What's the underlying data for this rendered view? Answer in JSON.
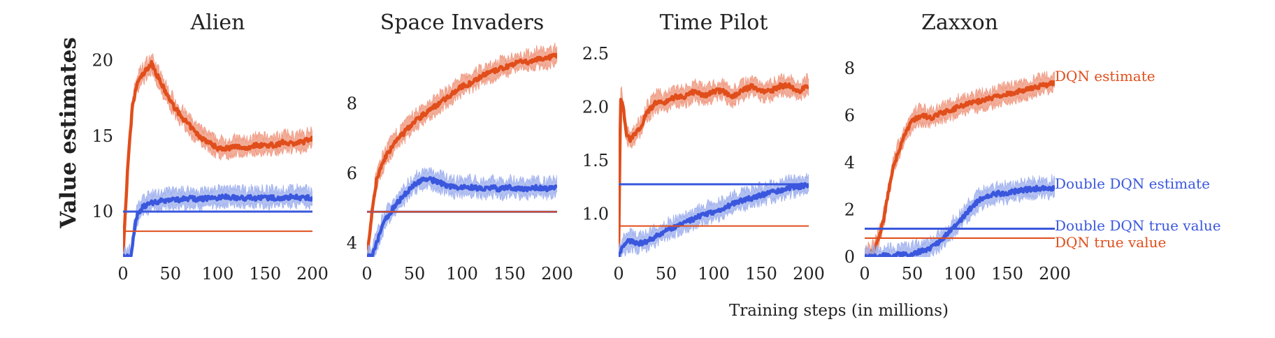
{
  "figure": {
    "ylabel": "Value estimates",
    "xlabel": "Training steps (in millions)",
    "legend_labels": {
      "dqn_estimate": "DQN estimate",
      "ddqn_estimate": "Double DQN estimate",
      "ddqn_true": "Double DQN true value",
      "dqn_true": "DQN true value"
    },
    "colors": {
      "dqn": "#e04e1b",
      "dqn_band": "#ef9880",
      "ddqn": "#3a57dd",
      "ddqn_band": "#9fb0ee"
    }
  },
  "chart_data": [
    {
      "type": "line",
      "title": "Alien",
      "xlim": [
        0,
        200
      ],
      "ylim": [
        7,
        21.5
      ],
      "xticks": [
        0,
        50,
        100,
        150,
        200
      ],
      "yticks": [
        10,
        15,
        20
      ],
      "series": [
        {
          "name": "DQN estimate",
          "x": [
            0,
            5,
            10,
            15,
            20,
            30,
            40,
            50,
            60,
            70,
            80,
            90,
            100,
            110,
            120,
            130,
            140,
            150,
            160,
            170,
            180,
            190,
            200
          ],
          "values": [
            7,
            13,
            17,
            18.5,
            19,
            19.8,
            18.5,
            17.3,
            16.4,
            15.7,
            15.0,
            14.6,
            14.2,
            14.2,
            14.3,
            14.2,
            14.4,
            14.4,
            14.4,
            14.6,
            14.5,
            14.6,
            14.9
          ]
        },
        {
          "name": "Double DQN estimate",
          "x": [
            0,
            5,
            8,
            12,
            15,
            20,
            30,
            40,
            50,
            60,
            70,
            80,
            90,
            100,
            110,
            120,
            130,
            140,
            150,
            160,
            170,
            180,
            190,
            200
          ],
          "values": [
            7,
            7,
            7,
            8.8,
            9.8,
            10.3,
            10.6,
            10.7,
            10.8,
            10.8,
            10.9,
            10.8,
            10.9,
            10.9,
            11.0,
            10.9,
            10.9,
            10.9,
            10.9,
            10.9,
            10.9,
            11.0,
            10.9,
            10.9
          ]
        },
        {
          "name": "Double DQN true value",
          "x": [
            0,
            200
          ],
          "values": [
            10,
            10
          ]
        },
        {
          "name": "DQN true value",
          "x": [
            0,
            200
          ],
          "values": [
            8.7,
            8.7
          ]
        }
      ]
    },
    {
      "type": "line",
      "title": "Space Invaders",
      "xlim": [
        0,
        200
      ],
      "ylim": [
        3.6,
        9.9
      ],
      "xticks": [
        0,
        50,
        100,
        150,
        200
      ],
      "yticks": [
        4,
        6,
        8
      ],
      "series": [
        {
          "name": "DQN estimate",
          "x": [
            0,
            5,
            10,
            15,
            20,
            30,
            40,
            50,
            60,
            70,
            80,
            90,
            100,
            110,
            120,
            130,
            140,
            150,
            160,
            170,
            180,
            190,
            200
          ],
          "values": [
            3.6,
            4.8,
            5.8,
            6.2,
            6.5,
            6.9,
            7.2,
            7.5,
            7.7,
            7.9,
            8.1,
            8.3,
            8.5,
            8.6,
            8.8,
            8.9,
            9.0,
            9.1,
            9.2,
            9.2,
            9.3,
            9.3,
            9.4
          ]
        },
        {
          "name": "Double DQN estimate",
          "x": [
            0,
            5,
            10,
            15,
            20,
            30,
            40,
            50,
            60,
            70,
            80,
            90,
            100,
            110,
            120,
            130,
            140,
            150,
            160,
            170,
            180,
            190,
            200
          ],
          "values": [
            3.6,
            3.6,
            4.0,
            4.4,
            4.7,
            5.1,
            5.4,
            5.7,
            5.85,
            5.8,
            5.7,
            5.6,
            5.6,
            5.6,
            5.55,
            5.6,
            5.55,
            5.6,
            5.55,
            5.55,
            5.6,
            5.55,
            5.6
          ]
        },
        {
          "name": "Double DQN true value",
          "x": [
            0,
            200
          ],
          "values": [
            4.9,
            4.9
          ]
        },
        {
          "name": "DQN true value",
          "x": [
            0,
            200
          ],
          "values": [
            4.9,
            4.9
          ]
        }
      ]
    },
    {
      "type": "line",
      "title": "Time Pilot",
      "xlim": [
        0,
        200
      ],
      "ylim": [
        0.6,
        2.65
      ],
      "xticks": [
        0,
        50,
        100,
        150,
        200
      ],
      "yticks": [
        1.0,
        1.5,
        2.0,
        2.5
      ],
      "series": [
        {
          "name": "DQN estimate",
          "x": [
            0,
            2,
            5,
            8,
            12,
            18,
            25,
            30,
            40,
            50,
            60,
            70,
            80,
            90,
            100,
            110,
            120,
            130,
            140,
            150,
            160,
            170,
            180,
            190,
            200
          ],
          "values": [
            0.6,
            2.1,
            2.0,
            1.75,
            1.7,
            1.75,
            1.85,
            1.95,
            2.05,
            2.05,
            2.1,
            2.1,
            2.15,
            2.1,
            2.15,
            2.15,
            2.1,
            2.15,
            2.2,
            2.15,
            2.15,
            2.2,
            2.2,
            2.15,
            2.2
          ]
        },
        {
          "name": "Double DQN estimate",
          "x": [
            0,
            5,
            10,
            20,
            30,
            40,
            50,
            60,
            70,
            80,
            90,
            100,
            110,
            120,
            130,
            140,
            150,
            160,
            170,
            180,
            190,
            200
          ],
          "values": [
            0.6,
            0.7,
            0.75,
            0.73,
            0.74,
            0.8,
            0.85,
            0.88,
            0.92,
            0.96,
            1.0,
            1.02,
            1.05,
            1.1,
            1.13,
            1.15,
            1.18,
            1.2,
            1.22,
            1.25,
            1.26,
            1.27
          ]
        },
        {
          "name": "Double DQN true value",
          "x": [
            0,
            200
          ],
          "values": [
            1.28,
            1.28
          ]
        },
        {
          "name": "DQN true value",
          "x": [
            0,
            200
          ],
          "values": [
            0.89,
            0.89
          ]
        }
      ]
    },
    {
      "type": "line",
      "title": "Zaxxon",
      "xlim": [
        0,
        200
      ],
      "ylim": [
        0,
        9.3
      ],
      "xticks": [
        0,
        50,
        100,
        150,
        200
      ],
      "yticks": [
        0,
        2,
        4,
        6,
        8
      ],
      "series": [
        {
          "name": "DQN estimate",
          "x": [
            0,
            5,
            10,
            15,
            20,
            25,
            30,
            40,
            50,
            60,
            70,
            80,
            90,
            100,
            110,
            120,
            130,
            140,
            150,
            160,
            170,
            180,
            190,
            200
          ],
          "values": [
            0,
            0.1,
            0.3,
            0.8,
            1.6,
            2.8,
            3.8,
            5.0,
            5.8,
            6.0,
            5.9,
            6.1,
            6.2,
            6.4,
            6.5,
            6.6,
            6.7,
            6.8,
            6.9,
            7.0,
            7.1,
            7.2,
            7.3,
            7.4
          ]
        },
        {
          "name": "Double DQN estimate",
          "x": [
            0,
            10,
            20,
            30,
            40,
            50,
            60,
            70,
            80,
            90,
            100,
            110,
            120,
            130,
            140,
            150,
            160,
            170,
            180,
            190,
            200
          ],
          "values": [
            0,
            0,
            0.05,
            0.08,
            0.1,
            0.15,
            0.25,
            0.4,
            0.7,
            1.1,
            1.5,
            2.0,
            2.4,
            2.6,
            2.7,
            2.7,
            2.8,
            2.85,
            2.9,
            2.9,
            2.95
          ]
        },
        {
          "name": "Double DQN true value",
          "x": [
            0,
            200
          ],
          "values": [
            1.2,
            1.2
          ]
        },
        {
          "name": "DQN true value",
          "x": [
            0,
            200
          ],
          "values": [
            0.8,
            0.8
          ]
        }
      ]
    }
  ]
}
